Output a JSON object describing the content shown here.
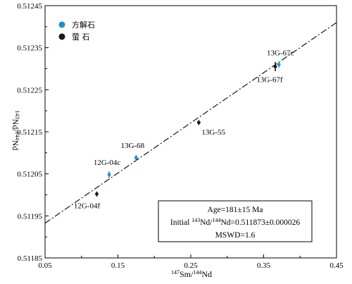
{
  "chart_data": {
    "type": "scatter",
    "title": "",
    "xlabel": {
      "pre": "147",
      "mid": "Sm/",
      "pre2": "144",
      "end": "Nd"
    },
    "ylabel": {
      "pre": "143",
      "mid": "Nd/",
      "pre2": "144",
      "end": "Nd"
    },
    "xlim": [
      0.05,
      0.45
    ],
    "ylim": [
      0.51185,
      0.51245
    ],
    "x_ticks": [
      "0.05",
      "0.15",
      "0.25",
      "0.35",
      "0.45"
    ],
    "y_ticks": [
      "0.51185",
      "0.51195",
      "0.51205",
      "0.51215",
      "0.51225",
      "0.51235",
      "0.51245"
    ],
    "series": [
      {
        "name": "方解石",
        "color": "#1f8fd0",
        "points": [
          {
            "label": "12G-04c",
            "x": 0.138,
            "y": 0.512048,
            "err": 8e-06
          },
          {
            "label": "13G-68",
            "x": 0.175,
            "y": 0.512088,
            "err": 7e-06
          },
          {
            "label": "13G-67c",
            "x": 0.371,
            "y": 0.51231,
            "err": 7e-06
          }
        ]
      },
      {
        "name": "萤 石",
        "color": "#1a1a1a",
        "points": [
          {
            "label": "12G-04f",
            "x": 0.121,
            "y": 0.512002,
            "err": 6e-06
          },
          {
            "label": "13G-55",
            "x": 0.261,
            "y": 0.512172,
            "err": 6e-06
          },
          {
            "label": "13G-67f",
            "x": 0.366,
            "y": 0.512305,
            "err": 1.1e-05
          }
        ]
      }
    ],
    "isochron": {
      "intercept": 0.511873,
      "slope": 0.001193
    },
    "info_box": {
      "age": "Age=181±15 Ma",
      "initial_prefix": "Initial ",
      "initial_sup1": "143",
      "initial_mid": "Nd/",
      "initial_sup2": "144",
      "initial_suffix": "Nd=0.511873±0.000026",
      "mswd": "MSWD=1.6"
    },
    "legend_placement": "top-left",
    "grid": false
  }
}
